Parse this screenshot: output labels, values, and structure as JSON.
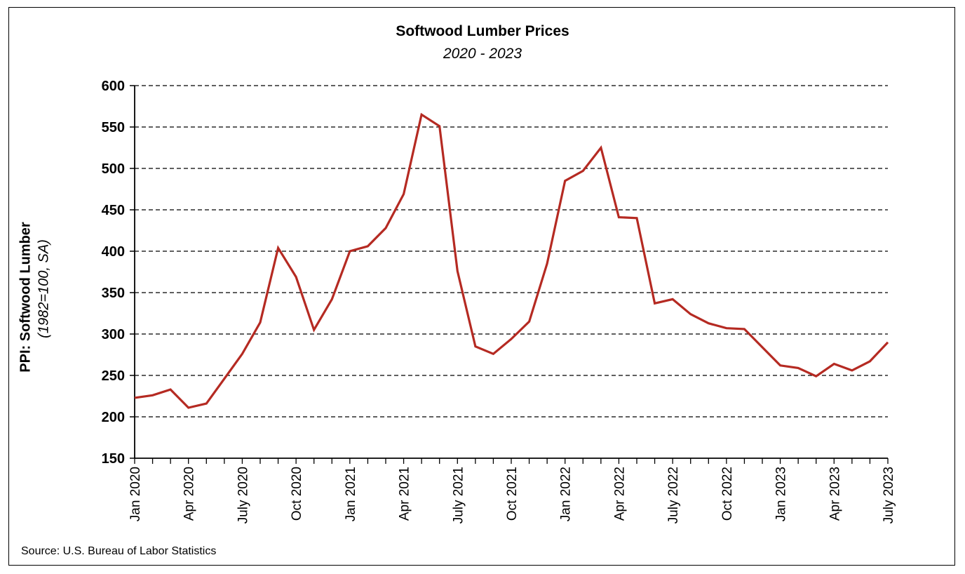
{
  "chart_data": {
    "type": "line",
    "title": "Softwood Lumber Prices",
    "subtitle": "2020 - 2023",
    "ylabel": "PPI: Softwood Lumber",
    "ylabel_sub": "(1982=100, SA)",
    "xlabel": "",
    "ylim": [
      150,
      600
    ],
    "yticks": [
      150,
      200,
      250,
      300,
      350,
      400,
      450,
      500,
      550,
      600
    ],
    "grid": true,
    "color": "#b52a22",
    "xtick_labels": [
      {
        "index": 0,
        "label": "Jan 2020"
      },
      {
        "index": 3,
        "label": "Apr 2020"
      },
      {
        "index": 6,
        "label": "July 2020"
      },
      {
        "index": 9,
        "label": "Oct 2020"
      },
      {
        "index": 12,
        "label": "Jan 2021"
      },
      {
        "index": 15,
        "label": "Apr 2021"
      },
      {
        "index": 18,
        "label": "July 2021"
      },
      {
        "index": 21,
        "label": "Oct 2021"
      },
      {
        "index": 24,
        "label": "Jan 2022"
      },
      {
        "index": 27,
        "label": "Apr 2022"
      },
      {
        "index": 30,
        "label": "July 2022"
      },
      {
        "index": 33,
        "label": "Oct 2022"
      },
      {
        "index": 36,
        "label": "Jan 2023"
      },
      {
        "index": 39,
        "label": "Apr 2023"
      },
      {
        "index": 42,
        "label": "July 2023"
      }
    ],
    "series": [
      {
        "values": [
          223,
          226,
          233,
          211,
          216,
          246,
          276,
          314,
          404,
          369,
          305,
          342,
          400,
          406,
          428,
          469,
          565,
          551,
          376,
          285,
          276,
          294,
          315,
          385,
          485,
          497,
          525,
          441,
          440,
          337,
          342,
          324,
          313,
          307,
          306,
          284,
          262,
          259,
          249,
          264,
          256,
          267,
          290
        ]
      }
    ]
  },
  "footer": {
    "source": "Source: U.S. Bureau of Labor Statistics"
  }
}
